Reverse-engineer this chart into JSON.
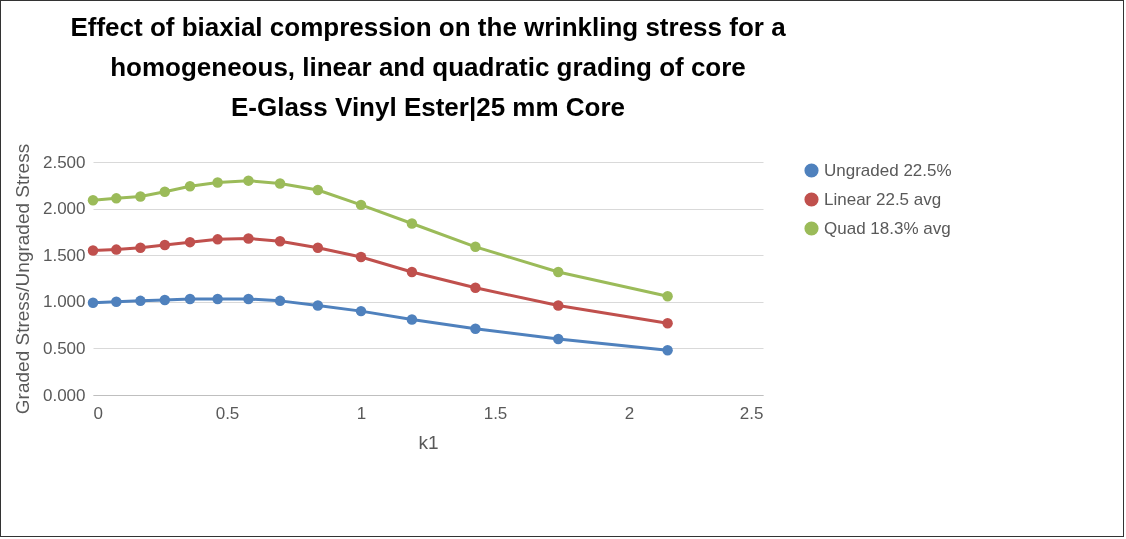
{
  "chart_data": {
    "type": "line",
    "title": "Effect of biaxial compression on the wrinkling stress for a\nhomogeneous, linear and quadratic grading of core\nE-Glass Vinyl Ester|25 mm Core",
    "xlabel": "k1",
    "ylabel": "Graded Stress/Ungraded Stress",
    "x": [
      0,
      0.087,
      0.177,
      0.268,
      0.362,
      0.465,
      0.58,
      0.698,
      0.839,
      1.0,
      1.19,
      1.427,
      1.736,
      2.144
    ],
    "series": [
      {
        "name": "Ungraded 22.5%",
        "color": "#4f81bd",
        "values": [
          0.99,
          1.0,
          1.01,
          1.02,
          1.03,
          1.03,
          1.03,
          1.01,
          0.96,
          0.9,
          0.81,
          0.71,
          0.6,
          0.48
        ]
      },
      {
        "name": "Linear 22.5 avg",
        "color": "#c0504d",
        "values": [
          1.55,
          1.56,
          1.58,
          1.61,
          1.64,
          1.67,
          1.68,
          1.65,
          1.58,
          1.48,
          1.32,
          1.15,
          0.96,
          0.77
        ]
      },
      {
        "name": "Quad 18.3% avg",
        "color": "#9bbb59",
        "values": [
          2.09,
          2.11,
          2.13,
          2.18,
          2.24,
          2.28,
          2.3,
          2.27,
          2.2,
          2.04,
          1.84,
          1.59,
          1.32,
          1.06
        ]
      }
    ],
    "xlim": [
      0,
      2.5
    ],
    "xticks": [
      0,
      0.5,
      1,
      1.5,
      2,
      2.5
    ],
    "ylim": [
      0,
      2.5
    ],
    "yticks": [
      {
        "value": 0,
        "label": "0.000"
      },
      {
        "value": 0.5,
        "label": "0.500"
      },
      {
        "value": 1,
        "label": "1.000"
      },
      {
        "value": 1.5,
        "label": "1.500"
      },
      {
        "value": 2,
        "label": "2.000"
      },
      {
        "value": 2.5,
        "label": "2.500"
      }
    ],
    "grid": "y",
    "legend": "right",
    "marker": "circle",
    "line_style": "solid"
  }
}
